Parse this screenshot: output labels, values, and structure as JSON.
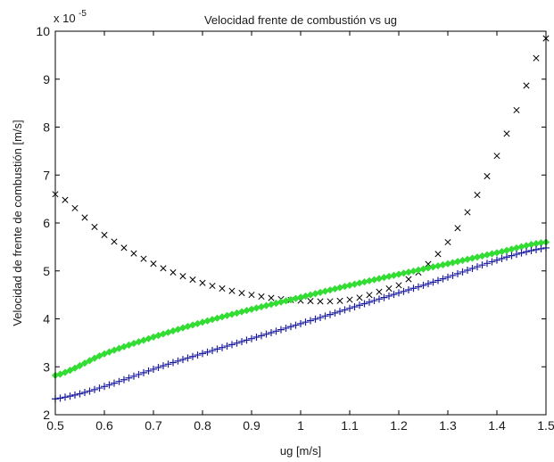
{
  "chart_data": {
    "type": "scatter",
    "title": "Velocidad frente de combustión vs ug",
    "xlabel": "ug [m/s]",
    "ylabel": "Velocidad de frente de combustión [m/s]",
    "y_multiplier_label": "x 10",
    "y_multiplier_exponent": "-5",
    "xlim": [
      0.5,
      1.5
    ],
    "ylim": [
      2,
      10
    ],
    "x_ticks": [
      "0.5",
      "0.6",
      "0.7",
      "0.8",
      "0.9",
      "1",
      "1.1",
      "1.2",
      "1.3",
      "1.4",
      "1.5"
    ],
    "y_ticks": [
      "2",
      "3",
      "4",
      "5",
      "6",
      "7",
      "8",
      "9",
      "10"
    ],
    "grid": false,
    "legend": "none",
    "series": [
      {
        "marker": "x",
        "color": "#000000",
        "x_range": [
          0.5,
          1.5
        ],
        "x_step": 0.02,
        "knots_x": [
          0.5,
          0.6,
          0.7,
          0.8,
          0.9,
          1.0,
          1.1,
          1.2,
          1.25,
          1.3,
          1.35,
          1.4,
          1.45,
          1.5
        ],
        "knots_y": [
          6.6,
          5.75,
          5.15,
          4.75,
          4.5,
          4.38,
          4.4,
          4.7,
          5.05,
          5.6,
          6.4,
          7.4,
          8.6,
          9.85
        ]
      },
      {
        "marker": "diamond",
        "color": "#33dd33",
        "x_range": [
          0.5,
          1.5
        ],
        "x_step": 0.01,
        "knots_x": [
          0.5,
          0.6,
          0.7,
          0.8,
          0.9,
          1.0,
          1.1,
          1.2,
          1.3,
          1.4,
          1.5
        ],
        "knots_y": [
          2.82,
          3.27,
          3.62,
          3.93,
          4.2,
          4.45,
          4.7,
          4.93,
          5.15,
          5.38,
          5.6
        ]
      },
      {
        "marker": "plus",
        "color": "#1a1aa0",
        "x_range": [
          0.5,
          1.5
        ],
        "x_step": 0.01,
        "knots_x": [
          0.5,
          0.75,
          1.0,
          1.25,
          1.5
        ],
        "knots_y": [
          2.33,
          3.12,
          3.9,
          4.7,
          5.48
        ]
      }
    ]
  }
}
